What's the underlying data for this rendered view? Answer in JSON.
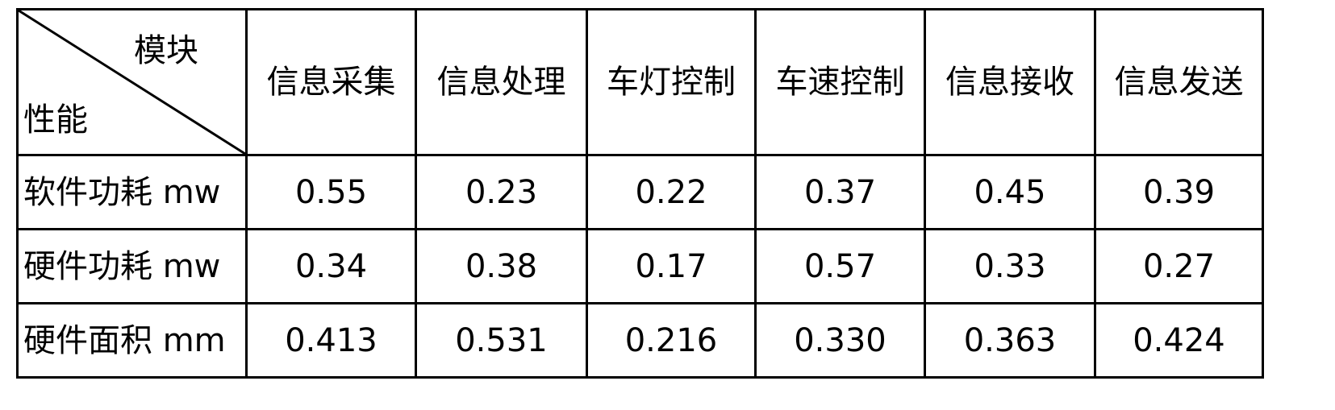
{
  "table": {
    "corner": {
      "top_label": "模块",
      "bottom_label": "性能"
    },
    "columns": [
      "信息采集",
      "信息处理",
      "车灯控制",
      "车速控制",
      "信息接收",
      "信息发送"
    ],
    "rows": [
      {
        "label": "软件功耗 mw",
        "values": [
          "0.55",
          "0.23",
          "0.22",
          "0.37",
          "0.45",
          "0.39"
        ]
      },
      {
        "label": "硬件功耗 mw",
        "values": [
          "0.34",
          "0.38",
          "0.17",
          "0.57",
          "0.33",
          "0.27"
        ]
      },
      {
        "label": "硬件面积 mm",
        "values": [
          "0.413",
          "0.531",
          "0.216",
          "0.330",
          "0.363",
          "0.424"
        ]
      }
    ]
  }
}
